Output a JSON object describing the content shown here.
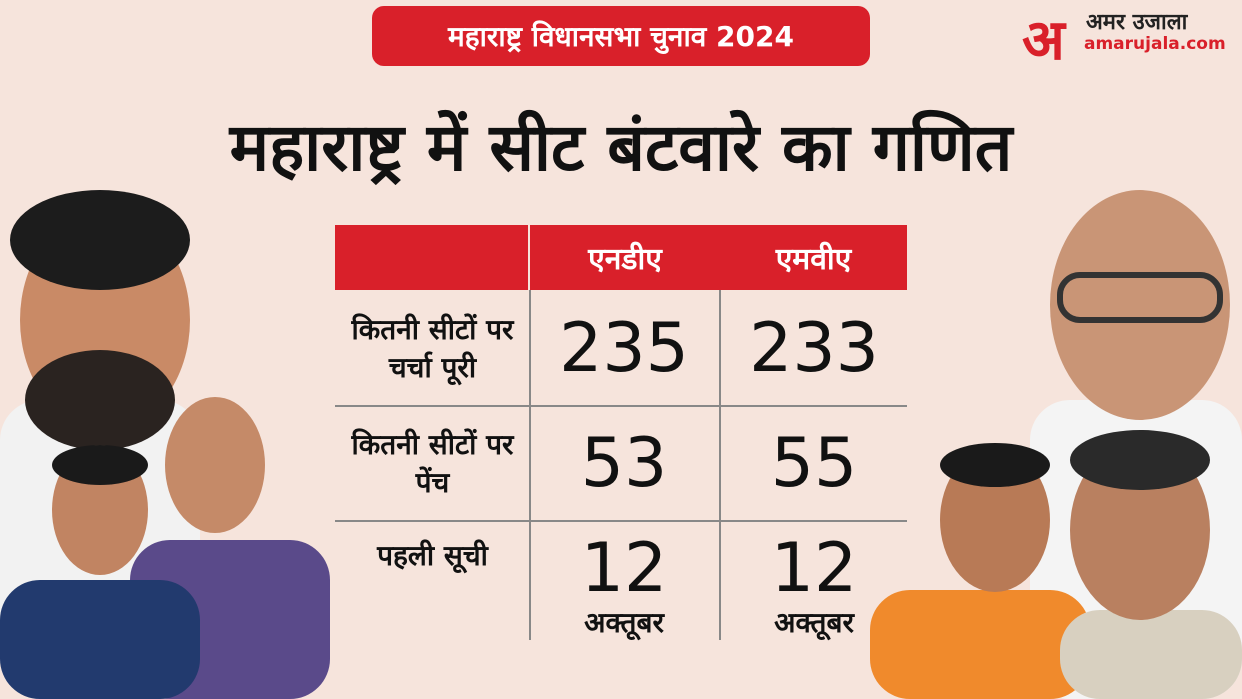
{
  "header": {
    "badge": "महाराष्ट्र विधानसभा चुनाव 2024",
    "title": "महाराष्ट्र में सीट बंटवारे का गणित"
  },
  "logo": {
    "mark": "अ",
    "name": "अमर उजाला",
    "site": "amarujala.com"
  },
  "table": {
    "columns": [
      "एनडीए",
      "एमवीए"
    ],
    "rows": [
      {
        "label": "कितनी सीटों पर चर्चा पूरी",
        "cells": [
          {
            "main": "235"
          },
          {
            "main": "233"
          }
        ]
      },
      {
        "label": "कितनी सीटों पर पेंच",
        "cells": [
          {
            "main": "53"
          },
          {
            "main": "55"
          }
        ]
      },
      {
        "label": "पहली सूची",
        "cells": [
          {
            "main": "12",
            "sub": "अक्तूबर"
          },
          {
            "main": "12",
            "sub": "अक्तूबर"
          }
        ]
      }
    ]
  }
}
